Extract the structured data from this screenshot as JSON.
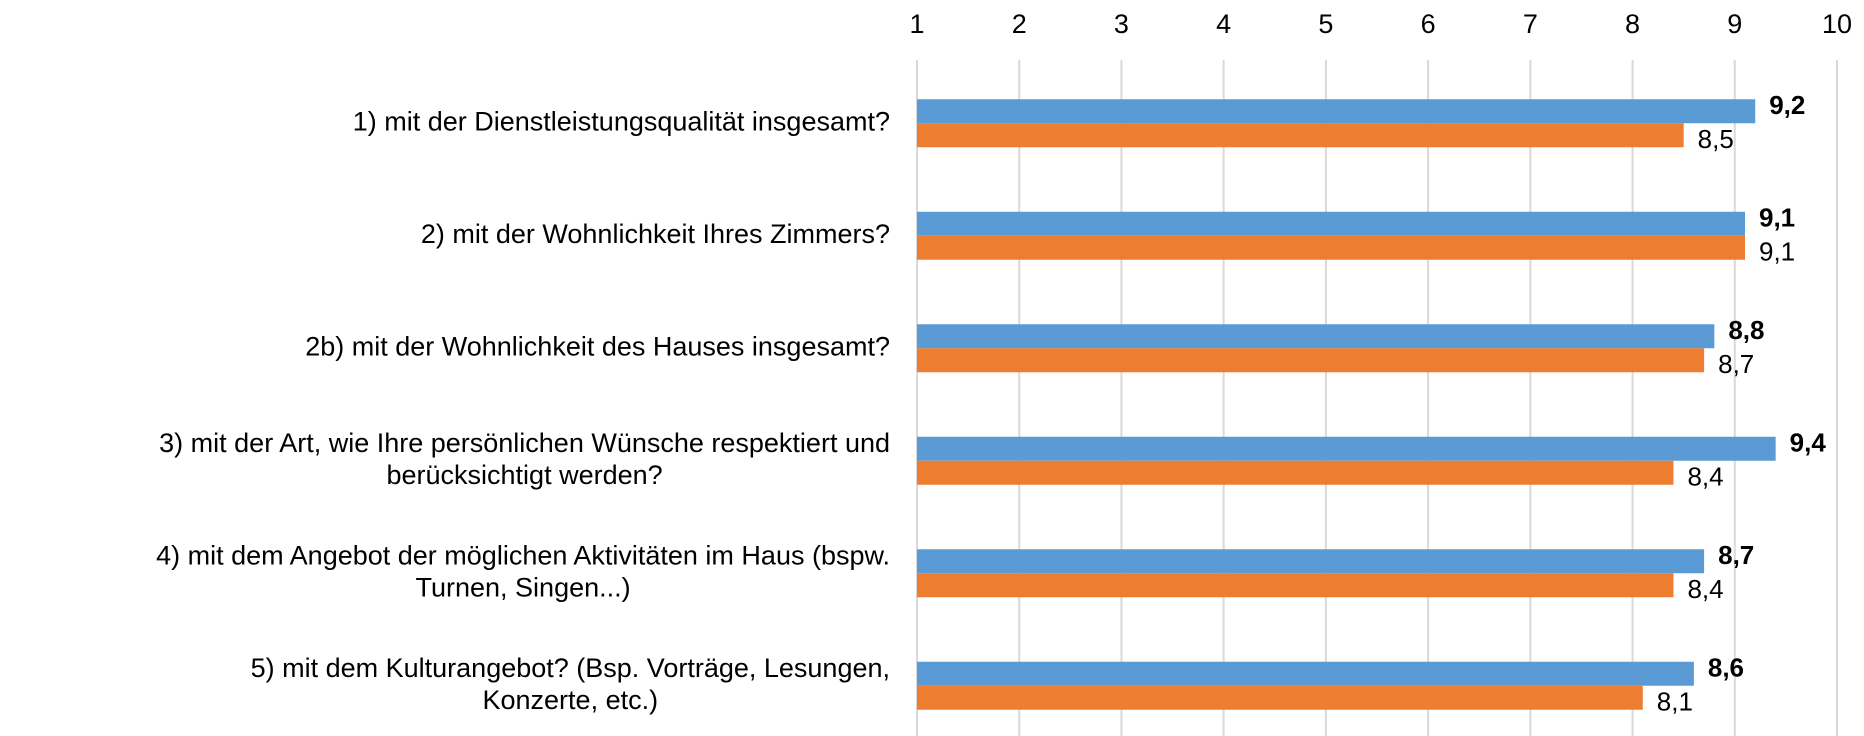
{
  "chart_data": {
    "type": "bar",
    "orientation": "horizontal",
    "categories": [
      [
        "1) mit der Dienstleistungsqualität insgesamt?"
      ],
      [
        "2) mit der Wohnlichkeit Ihres Zimmers?"
      ],
      [
        "2b) mit der Wohnlichkeit des Hauses insgesamt?"
      ],
      [
        "3) mit der Art, wie Ihre persönlichen Wünsche respektiert und",
        "berücksichtigt werden?"
      ],
      [
        "4) mit dem Angebot der möglichen Aktivitäten im Haus (bspw.",
        "Turnen, Singen...)"
      ],
      [
        "5) mit dem Kulturangebot? (Bsp. Vorträge, Lesungen,",
        "Konzerte, etc.)"
      ]
    ],
    "series": [
      {
        "color": "#5b9bd5",
        "values": [
          9.2,
          9.1,
          8.8,
          9.4,
          8.7,
          8.6
        ],
        "value_labels": [
          "9,2",
          "9,1",
          "8,8",
          "9,4",
          "8,7",
          "8,6"
        ]
      },
      {
        "color": "#ed7d31",
        "values": [
          8.5,
          9.1,
          8.7,
          8.4,
          8.4,
          8.1
        ],
        "value_labels": [
          "8,5",
          "9,1",
          "8,7",
          "8,4",
          "8,4",
          "8,1"
        ]
      }
    ],
    "xlim": [
      1,
      10
    ],
    "xticks": [
      1,
      2,
      3,
      4,
      5,
      6,
      7,
      8,
      9,
      10
    ],
    "grid": true
  }
}
